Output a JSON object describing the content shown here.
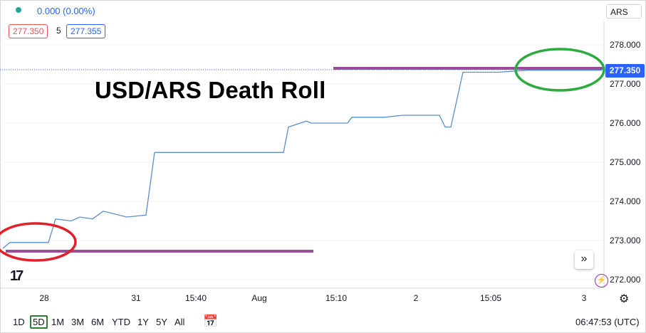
{
  "header": {
    "change": "0.000 (0.00%)",
    "bid": "277.350",
    "spread": "5",
    "ask": "277.355",
    "currency": "ARS"
  },
  "overlay_title": "USD/ARS Death Roll",
  "toolbar": {
    "ranges": [
      "1D",
      "5D",
      "1M",
      "3M",
      "6M",
      "YTD",
      "1Y",
      "5Y",
      "All"
    ],
    "active_range": "5D",
    "clock": "06:47:53 (UTC)"
  },
  "colors": {
    "line": "#5b8ec9",
    "last_price": "#2962ff",
    "level_lines": "#9b4a9e",
    "circle_red": "#e0202a",
    "circle_green": "#2eaa3f"
  },
  "chart_data": {
    "type": "line",
    "title": "USD/ARS Death Roll",
    "x_ticks": [
      "28",
      "31",
      "15:40",
      "Aug",
      "15:10",
      "2",
      "15:05",
      "3"
    ],
    "y_ticks": [
      "278.000",
      "277.000",
      "276.000",
      "275.000",
      "274.000",
      "273.000",
      "272.000"
    ],
    "ylim": [
      271.8,
      278.4
    ],
    "last_price": "277.350",
    "series": [
      {
        "points": [
          [
            "28",
            272.8
          ],
          [
            "28",
            272.95
          ],
          [
            "28",
            272.95
          ],
          [
            "28",
            273.55
          ],
          [
            "28",
            273.5
          ],
          [
            "28",
            273.6
          ],
          [
            "28",
            273.55
          ],
          [
            "28",
            273.75
          ],
          [
            "28",
            273.6
          ],
          [
            "31",
            273.65
          ],
          [
            "31",
            275.25
          ],
          [
            "15:40",
            275.25
          ],
          [
            "15:40",
            275.25
          ],
          [
            "Aug",
            275.25
          ],
          [
            "Aug",
            275.9
          ],
          [
            "Aug",
            276.05
          ],
          [
            "Aug",
            276.0
          ],
          [
            "15:10",
            276.0
          ],
          [
            "15:10",
            276.15
          ],
          [
            "15:10",
            276.15
          ],
          [
            "2",
            276.2
          ],
          [
            "2",
            276.2
          ],
          [
            "2",
            275.9
          ],
          [
            "2",
            275.9
          ],
          [
            "2",
            277.3
          ],
          [
            "15:05",
            277.3
          ],
          [
            "15:05",
            277.3
          ],
          [
            "15:05",
            277.35
          ],
          [
            "3",
            277.35
          ]
        ]
      }
    ],
    "annotations": [
      {
        "type": "horizontal-line",
        "level": 272.8,
        "span": "28 → Aug"
      },
      {
        "type": "horizontal-line",
        "level": 277.4,
        "span": "15:10 → 3"
      },
      {
        "type": "ellipse",
        "color": "red",
        "around": "start"
      },
      {
        "type": "ellipse",
        "color": "green",
        "around": "end"
      }
    ],
    "grid": true,
    "legend": "none"
  }
}
